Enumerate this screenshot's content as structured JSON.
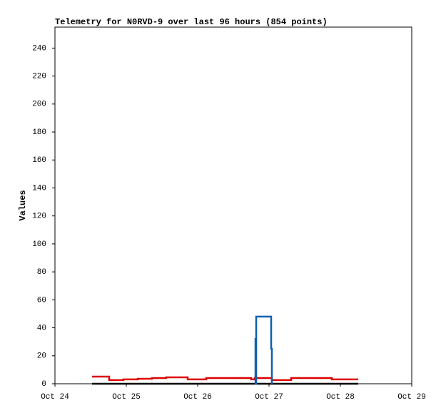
{
  "chart_data": {
    "type": "line",
    "step": "post",
    "title": "Telemetry for N0RVD-9 over last 96 hours (854 points)",
    "y_label": "Values",
    "xlim": [
      24,
      29
    ],
    "xticks": [
      {
        "value": 24,
        "label": "Oct 24"
      },
      {
        "value": 25,
        "label": "Oct 25"
      },
      {
        "value": 26,
        "label": "Oct 26"
      },
      {
        "value": 27,
        "label": "Oct 27"
      },
      {
        "value": 28,
        "label": "Oct 28"
      },
      {
        "value": 29,
        "label": "Oct 29"
      }
    ],
    "ylim": [
      0,
      255
    ],
    "yticks": [
      0,
      20,
      40,
      60,
      80,
      100,
      120,
      140,
      160,
      180,
      200,
      220,
      240
    ],
    "series": [
      {
        "color": "#000000",
        "x": [
          24.52,
          28.25
        ],
        "values": [
          0,
          0
        ]
      },
      {
        "color": "#dd0000",
        "x": [
          24.52,
          24.76,
          24.96,
          25.16,
          25.36,
          25.56,
          25.86,
          26.12,
          26.75,
          26.8,
          27.04,
          27.31,
          27.88,
          28.25
        ],
        "values": [
          5.1,
          2.6,
          3.1,
          3.6,
          4.1,
          4.6,
          3.1,
          4.1,
          3.1,
          4.1,
          2.6,
          4.1,
          3.1,
          3.1
        ]
      },
      {
        "color": "#1060b0",
        "x": [
          26.8,
          26.81,
          26.815,
          26.82,
          27.03,
          27.04
        ],
        "values": [
          0,
          32,
          0,
          48,
          25,
          0
        ]
      }
    ]
  }
}
